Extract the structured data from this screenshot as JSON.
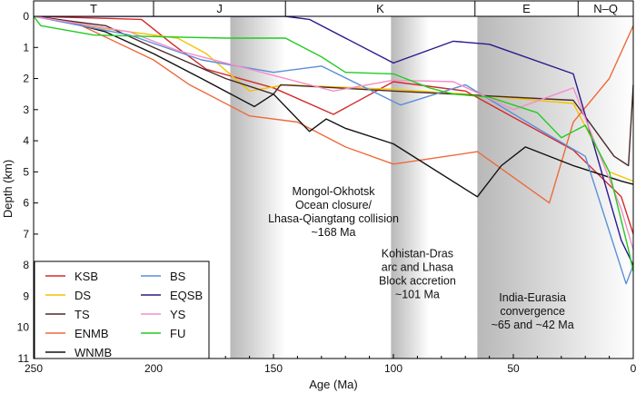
{
  "chart_data": {
    "type": "line",
    "xlabel": "Age (Ma)",
    "ylabel": "Depth (km)",
    "xlim": [
      250,
      0
    ],
    "ylim": [
      11,
      0
    ],
    "x_ticks": [
      250,
      200,
      150,
      100,
      50,
      0
    ],
    "y_ticks": [
      0,
      1,
      2,
      3,
      4,
      5,
      6,
      7,
      8,
      9,
      10,
      11
    ],
    "periods": [
      {
        "label": "T",
        "from": 250,
        "to": 200
      },
      {
        "label": "J",
        "from": 200,
        "to": 145
      },
      {
        "label": "K",
        "from": 145,
        "to": 66
      },
      {
        "label": "E",
        "from": 66,
        "to": 23
      },
      {
        "label": "N–Q",
        "from": 23,
        "to": 0
      }
    ],
    "event_bands": [
      {
        "from": 168,
        "to": 145,
        "text": [
          "Mongol-Okhotsk",
          "Ocean closure/",
          "Lhasa-Qiangtang collision",
          "~168 Ma"
        ],
        "label_age": 125,
        "label_depth": 6.4
      },
      {
        "from": 101,
        "to": 85,
        "text": [
          "Kohistan-Dras",
          "arc and Lhasa",
          "Block accretion",
          "~101 Ma"
        ],
        "label_age": 90,
        "label_depth": 8.4
      },
      {
        "from": 65,
        "to": 0,
        "text": [
          "India-Eurasia",
          "convergence",
          "~65 and ~42 Ma"
        ],
        "label_age": 42,
        "label_depth": 9.6
      }
    ],
    "legend_position": "bottom-left",
    "series": [
      {
        "name": "KSB",
        "color": "#d42a2a",
        "points": [
          [
            250,
            0
          ],
          [
            205,
            0.1
          ],
          [
            192,
            0.9
          ],
          [
            178,
            1.7
          ],
          [
            150,
            2.3
          ],
          [
            125,
            3.15
          ],
          [
            100,
            2.1
          ],
          [
            70,
            2.4
          ],
          [
            25,
            4.3
          ],
          [
            5,
            5.8
          ],
          [
            0,
            7
          ]
        ]
      },
      {
        "name": "DS",
        "color": "#f2c400",
        "points": [
          [
            250,
            0
          ],
          [
            220,
            0.4
          ],
          [
            190,
            0.7
          ],
          [
            178,
            1.2
          ],
          [
            160,
            2.4
          ],
          [
            145,
            2.2
          ],
          [
            100,
            2.35
          ],
          [
            70,
            2.5
          ],
          [
            25,
            2.8
          ],
          [
            10,
            5
          ],
          [
            0,
            5.3
          ]
        ]
      },
      {
        "name": "TS",
        "color": "#4a2a2a",
        "points": [
          [
            250,
            0
          ],
          [
            220,
            0.3
          ],
          [
            200,
            1
          ],
          [
            170,
            2
          ],
          [
            150,
            2.5
          ],
          [
            147,
            2.2
          ],
          [
            100,
            2.4
          ],
          [
            25,
            2.7
          ],
          [
            8,
            4.5
          ],
          [
            2,
            4.8
          ],
          [
            0,
            2.2
          ]
        ]
      },
      {
        "name": "ENMB",
        "color": "#ee6a3c",
        "points": [
          [
            250,
            0
          ],
          [
            230,
            0.3
          ],
          [
            200,
            1.4
          ],
          [
            185,
            2.2
          ],
          [
            160,
            3.2
          ],
          [
            140,
            3.4
          ],
          [
            120,
            4.2
          ],
          [
            100,
            4.75
          ],
          [
            65,
            4.35
          ],
          [
            35,
            6
          ],
          [
            25,
            3.4
          ],
          [
            10,
            2
          ],
          [
            0,
            0.3
          ]
        ]
      },
      {
        "name": "WNMB",
        "color": "#111111",
        "points": [
          [
            250,
            0
          ],
          [
            240,
            0.1
          ],
          [
            220,
            0.5
          ],
          [
            200,
            1.2
          ],
          [
            180,
            2
          ],
          [
            158,
            2.9
          ],
          [
            150,
            2.5
          ],
          [
            135,
            3.7
          ],
          [
            128,
            3.3
          ],
          [
            120,
            3.6
          ],
          [
            100,
            4.1
          ],
          [
            65,
            5.8
          ],
          [
            55,
            4.8
          ],
          [
            45,
            4.2
          ],
          [
            25,
            4.8
          ],
          [
            5,
            5.3
          ],
          [
            0,
            5.4
          ]
        ]
      },
      {
        "name": "BS",
        "color": "#5b8fd9",
        "points": [
          [
            250,
            0
          ],
          [
            210,
            0.6
          ],
          [
            180,
            1.4
          ],
          [
            150,
            1.8
          ],
          [
            130,
            1.6
          ],
          [
            97,
            2.85
          ],
          [
            70,
            2.2
          ],
          [
            40,
            3.6
          ],
          [
            20,
            4.5
          ],
          [
            3,
            8.6
          ],
          [
            0,
            8.0
          ]
        ]
      },
      {
        "name": "EQSB",
        "color": "#2a1a8c",
        "points": [
          [
            250,
            0
          ],
          [
            225,
            0
          ],
          [
            210,
            0
          ],
          [
            175,
            0
          ],
          [
            145,
            0
          ],
          [
            135,
            0.1
          ],
          [
            100,
            1.5
          ],
          [
            75,
            0.8
          ],
          [
            60,
            0.9
          ],
          [
            25,
            1.85
          ],
          [
            5,
            7.2
          ],
          [
            0,
            8
          ]
        ]
      },
      {
        "name": "YS",
        "color": "#f48fc8",
        "points": [
          [
            250,
            0
          ],
          [
            210,
            0.5
          ],
          [
            190,
            1.1
          ],
          [
            165,
            1.6
          ],
          [
            150,
            1.9
          ],
          [
            125,
            2.4
          ],
          [
            100,
            2.05
          ],
          [
            75,
            2.1
          ],
          [
            50,
            3
          ],
          [
            25,
            2.3
          ],
          [
            5,
            6.2
          ],
          [
            0,
            7.5
          ]
        ]
      },
      {
        "name": "FU",
        "color": "#22cc22",
        "points": [
          [
            250,
            0
          ],
          [
            247,
            0.3
          ],
          [
            225,
            0.6
          ],
          [
            200,
            0.65
          ],
          [
            170,
            0.7
          ],
          [
            145,
            0.7
          ],
          [
            130,
            1.3
          ],
          [
            120,
            1.8
          ],
          [
            100,
            1.85
          ],
          [
            85,
            2.3
          ],
          [
            75,
            2.5
          ],
          [
            60,
            2.6
          ],
          [
            40,
            3.1
          ],
          [
            30,
            3.9
          ],
          [
            20,
            3.5
          ],
          [
            10,
            5
          ],
          [
            2,
            7.5
          ],
          [
            0,
            8.2
          ]
        ]
      }
    ]
  }
}
